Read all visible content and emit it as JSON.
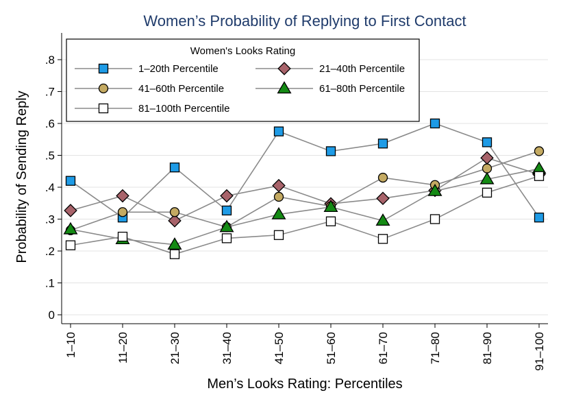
{
  "chart_data": {
    "type": "line",
    "title": "Women’s Probability of Replying to First Contact",
    "xlabel": "Men’s Looks Rating: Percentiles",
    "ylabel": "Probability of Sending Reply",
    "categories": [
      "1–10",
      "11–20",
      "21–30",
      "31–40",
      "41–50",
      "51–60",
      "61–70",
      "71–80",
      "81–90",
      "91–100"
    ],
    "ylim": [
      0,
      0.8
    ],
    "yticks": [
      0,
      0.1,
      0.2,
      0.3,
      0.4,
      0.5,
      0.6,
      0.7,
      0.8
    ],
    "ytick_labels": [
      "0",
      ".1",
      ".2",
      ".3",
      ".4",
      ".5",
      ".6",
      ".7",
      ".8"
    ],
    "grid": true,
    "legend": {
      "title": "Women's Looks Rating",
      "placement": "top-left"
    },
    "series": [
      {
        "name": "1–20th Percentile",
        "marker": "square",
        "color": "#1e9be6",
        "values": [
          0.42,
          0.305,
          0.462,
          0.327,
          0.575,
          0.513,
          0.537,
          0.6,
          0.541,
          0.305
        ]
      },
      {
        "name": "21–40th Percentile",
        "marker": "diamond",
        "color": "#a8636a",
        "values": [
          0.327,
          0.373,
          0.295,
          0.373,
          0.405,
          0.348,
          0.365,
          0.39,
          0.492,
          0.44
        ]
      },
      {
        "name": "41–60th Percentile",
        "marker": "circle",
        "color": "#c4aa62",
        "values": [
          0.265,
          0.322,
          0.322,
          0.275,
          0.37,
          0.34,
          0.43,
          0.407,
          0.459,
          0.513
        ]
      },
      {
        "name": "61–80th Percentile",
        "marker": "triangle",
        "color": "#148a14",
        "values": [
          0.268,
          0.237,
          0.22,
          0.275,
          0.315,
          0.338,
          0.295,
          0.388,
          0.425,
          0.458
        ]
      },
      {
        "name": "81–100th Percentile",
        "marker": "open-square",
        "color": "#ffffff",
        "values": [
          0.218,
          0.245,
          0.19,
          0.24,
          0.25,
          0.293,
          0.238,
          0.3,
          0.383,
          0.435
        ]
      }
    ]
  }
}
